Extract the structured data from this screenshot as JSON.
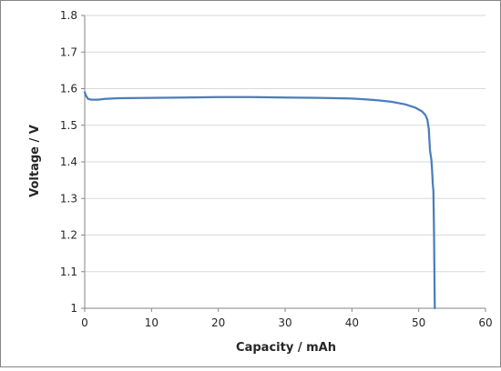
{
  "chart_data": {
    "type": "line",
    "title": "",
    "xlabel": "Capacity  /  mAh",
    "ylabel": "Voltage  /  V",
    "xlim": [
      0,
      60
    ],
    "ylim": [
      1,
      1.8
    ],
    "x_ticks": [
      "0",
      "10",
      "20",
      "30",
      "40",
      "50",
      "60"
    ],
    "y_ticks": [
      "1",
      "1.1",
      "1.2",
      "1.3",
      "1.4",
      "1.5",
      "1.6",
      "1.7",
      "1.8"
    ],
    "grid": "horizontal",
    "legend": "none",
    "series": [
      {
        "color": "#4a7ebb",
        "points": [
          [
            0.0,
            1.59
          ],
          [
            0.2,
            1.58
          ],
          [
            0.5,
            1.572
          ],
          [
            1.0,
            1.57
          ],
          [
            2.0,
            1.57
          ],
          [
            3.0,
            1.572
          ],
          [
            5.0,
            1.574
          ],
          [
            10.0,
            1.575
          ],
          [
            15.0,
            1.576
          ],
          [
            20.0,
            1.577
          ],
          [
            25.0,
            1.577
          ],
          [
            30.0,
            1.576
          ],
          [
            35.0,
            1.575
          ],
          [
            40.0,
            1.573
          ],
          [
            42.0,
            1.571
          ],
          [
            44.0,
            1.568
          ],
          [
            46.0,
            1.564
          ],
          [
            48.0,
            1.557
          ],
          [
            49.5,
            1.548
          ],
          [
            50.5,
            1.538
          ],
          [
            51.0,
            1.528
          ],
          [
            51.3,
            1.515
          ],
          [
            51.5,
            1.49
          ],
          [
            51.7,
            1.43
          ],
          [
            51.9,
            1.405
          ],
          [
            52.0,
            1.38
          ],
          [
            52.1,
            1.34
          ],
          [
            52.2,
            1.32
          ],
          [
            52.3,
            1.2
          ],
          [
            52.35,
            1.1
          ],
          [
            52.4,
            1.0
          ]
        ]
      }
    ]
  },
  "colors": {
    "series": "#4a7ebb",
    "grid": "#d9d9d9",
    "axis": "#868686",
    "plot_bg": "#ffffff"
  }
}
